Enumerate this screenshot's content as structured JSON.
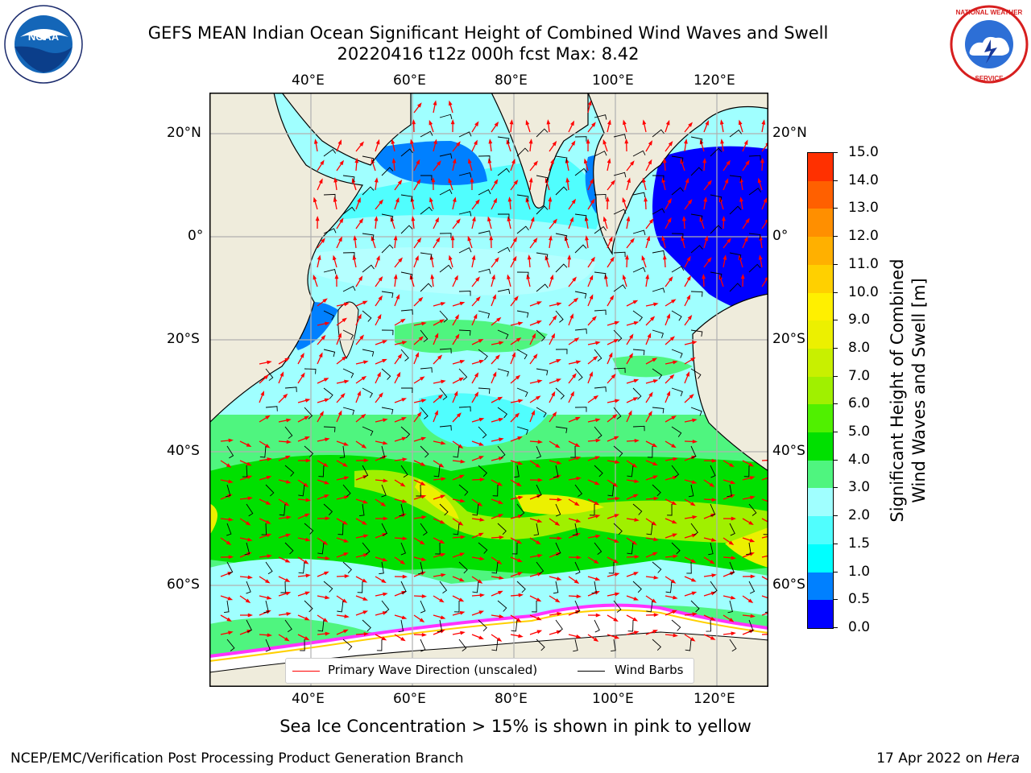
{
  "title": {
    "line1": "GEFS MEAN Indian Ocean Significant Height of Combined Wind Waves and Swell",
    "line2": "20220416 t12z 000h fcst   Max: 8.42"
  },
  "logos": {
    "left": {
      "text": "NOAA",
      "ring_text": "NATIONAL OCEANIC AND ATMOSPHERIC ADMINISTRATION · U.S. DEPARTMENT OF COMMERCE"
    },
    "right": {
      "ring_text": "NATIONAL WEATHER SERVICE"
    }
  },
  "map": {
    "lon_ticks_top": [
      "40°E",
      "60°E",
      "80°E",
      "100°E",
      "120°E"
    ],
    "lon_ticks_bottom": [
      "40°E",
      "60°E",
      "80°E",
      "100°E",
      "120°E"
    ],
    "lat_ticks_left": [
      "20°N",
      "0°",
      "20°S",
      "40°S",
      "60°S"
    ],
    "lat_ticks_right": [
      "20°N",
      "0°",
      "20°S",
      "40°S",
      "60°S"
    ],
    "lon_range": [
      20,
      130
    ],
    "lat_range": [
      -75,
      27
    ],
    "colors": {
      "land": "#efecdc",
      "sea_ice": "#ffffff",
      "ice_edge": "#ff33ff"
    }
  },
  "legend": {
    "primary_wave": "Primary Wave Direction (unscaled)",
    "wind_barbs": "Wind Barbs",
    "primary_color": "#ff0000",
    "barb_color": "#000000"
  },
  "colorbar": {
    "label_line1": "Significant Height of Combined",
    "label_line2": "Wind Waves and Swell [m]",
    "ticks": [
      "15.0",
      "14.0",
      "13.0",
      "12.0",
      "11.0",
      "10.0",
      "9.0",
      "8.0",
      "7.0",
      "6.0",
      "5.0",
      "4.0",
      "3.0",
      "2.0",
      "1.5",
      "1.0",
      "0.5",
      "0.0"
    ],
    "colors_bottom_up": [
      "#0000ff",
      "#0080ff",
      "#00ffff",
      "#50fefe",
      "#a0ffff",
      "#4ff57f",
      "#00e000",
      "#50f000",
      "#a0f000",
      "#c8f000",
      "#ecf000",
      "#fff000",
      "#ffd000",
      "#ffb000",
      "#ff8f00",
      "#ff6000",
      "#ff3000"
    ]
  },
  "caption": "Sea Ice Concentration > 15% is shown in pink to yellow",
  "footer": {
    "left": "NCEP/EMC/Verification Post Processing Product Generation Branch",
    "right_prefix": "17 Apr 2022 on ",
    "right_host": "Hera"
  }
}
